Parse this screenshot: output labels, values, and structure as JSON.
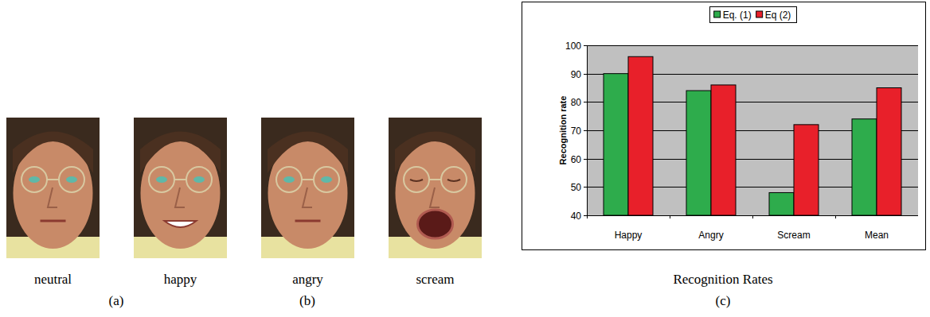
{
  "chart_data": {
    "type": "bar",
    "title": "Recognition Rates",
    "y_label": "Recognition rate",
    "categories": [
      "Happy",
      "Angry",
      "Scream",
      "Mean"
    ],
    "series": [
      {
        "name": "Eq. (1)",
        "color": "#2eac4c",
        "values": [
          90,
          84,
          48,
          74
        ]
      },
      {
        "name": "Eq (2)",
        "color": "#e8202a",
        "values": [
          96,
          86,
          72,
          85
        ]
      }
    ],
    "ylim": [
      40,
      100
    ],
    "yticks": [
      40,
      50,
      60,
      70,
      80,
      90,
      100
    ],
    "grid": true,
    "legend": "top"
  },
  "figure": {
    "images": [
      {
        "label": "neutral"
      },
      {
        "label": "happy"
      },
      {
        "label": "angry"
      },
      {
        "label": "scream"
      }
    ],
    "sublabels": [
      "(a)",
      "(b)",
      "(c)"
    ]
  }
}
